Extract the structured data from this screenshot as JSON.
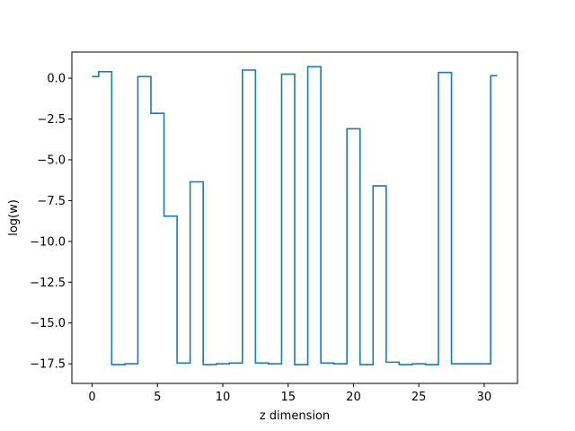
{
  "chart_data": {
    "type": "line",
    "drawstyle": "steps-mid",
    "title": "",
    "xlabel": "z dimension",
    "ylabel": "log(w)",
    "xlim": [
      -1.55,
      32.55
    ],
    "ylim": [
      -18.7,
      1.6
    ],
    "xticks": [
      0,
      5,
      10,
      15,
      20,
      25,
      30
    ],
    "xtick_labels": [
      "0",
      "5",
      "10",
      "15",
      "20",
      "25",
      "30"
    ],
    "yticks": [
      0.0,
      -2.5,
      -5.0,
      -7.5,
      -10.0,
      -12.5,
      -15.0,
      -17.5
    ],
    "ytick_labels": [
      "0.0",
      "−2.5",
      "−5.0",
      "−7.5",
      "−10.0",
      "−12.5",
      "−15.0",
      "−17.5"
    ],
    "grid": false,
    "colors": {
      "line": "#1f77b4"
    },
    "series": [
      {
        "x": [
          0,
          1,
          2,
          3,
          4,
          5,
          6,
          7,
          8,
          9,
          10,
          11,
          12,
          13,
          14,
          15,
          16,
          17,
          18,
          19,
          20,
          21,
          22,
          23,
          24,
          25,
          26,
          27,
          28,
          29,
          30,
          31
        ],
        "values": [
          0.1,
          0.4,
          -17.55,
          -17.5,
          0.1,
          -2.15,
          -8.45,
          -17.45,
          -6.35,
          -17.55,
          -17.5,
          -17.45,
          0.5,
          -17.45,
          -17.5,
          0.25,
          -17.55,
          0.7,
          -17.45,
          -17.5,
          -3.1,
          -17.55,
          -6.6,
          -17.4,
          -17.55,
          -17.5,
          -17.55,
          0.35,
          -17.5,
          -17.5,
          -17.5,
          0.15
        ]
      }
    ]
  }
}
